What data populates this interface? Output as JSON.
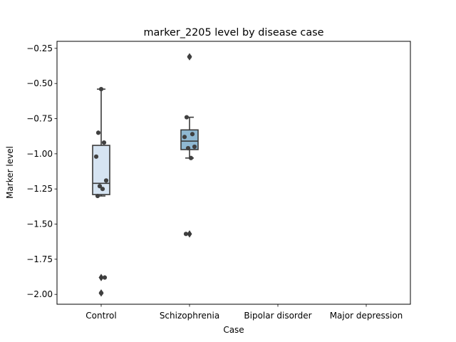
{
  "chart_data": {
    "type": "box",
    "title": "marker_2205 level by disease case",
    "xlabel": "Case",
    "ylabel": "Marker level",
    "categories": [
      "Control",
      "Schizophrenia",
      "Bipolar disorder",
      "Major depression"
    ],
    "ylim": [
      -2.07,
      -0.2
    ],
    "yticks": [
      -2.0,
      -1.75,
      -1.5,
      -1.25,
      -1.0,
      -0.75,
      -0.5,
      -0.25
    ],
    "ytick_labels": [
      "−2.00",
      "−1.75",
      "−1.50",
      "−1.25",
      "−1.00",
      "−0.75",
      "−0.50",
      "−0.25"
    ],
    "grid": false,
    "boxes": [
      {
        "category": "Control",
        "q1": -1.29,
        "median": -1.21,
        "q3": -0.94,
        "whisker_low": -1.3,
        "whisker_high": -0.54,
        "fliers": [
          -1.88,
          -1.99
        ],
        "points": [
          -0.54,
          -0.85,
          -0.92,
          -1.02,
          -1.19,
          -1.23,
          -1.25,
          -1.3,
          -1.88,
          -1.99
        ],
        "color": "#d6e4f2"
      },
      {
        "category": "Schizophrenia",
        "q1": -0.97,
        "median": -0.91,
        "q3": -0.83,
        "whisker_low": -1.03,
        "whisker_high": -0.74,
        "fliers": [
          -0.31,
          -1.57
        ],
        "points": [
          -0.31,
          -0.74,
          -0.86,
          -0.88,
          -0.95,
          -0.96,
          -1.03,
          -1.57
        ],
        "color": "#8fb8d2"
      }
    ],
    "point_color": "#404040",
    "line_color": "#3a3a3a"
  }
}
